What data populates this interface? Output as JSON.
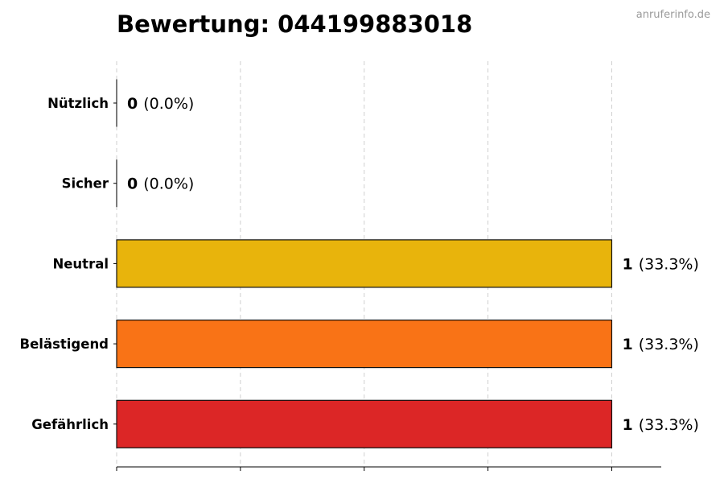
{
  "watermark": "anruferinfo.de",
  "chart_data": {
    "type": "bar",
    "orientation": "horizontal",
    "title": "Bewertung: 044199883018",
    "categories": [
      "Nützlich",
      "Sicher",
      "Neutral",
      "Belästigend",
      "Gefährlich"
    ],
    "values": [
      0,
      0,
      1,
      1,
      1
    ],
    "percent_labels": [
      "(0.0%)",
      "(0.0%)",
      "(33.3%)",
      "(33.3%)",
      "(33.3%)"
    ],
    "colors": [
      "#2e9e44",
      "#1f6fb2",
      "#e8b40c",
      "#f97316",
      "#dc2626"
    ],
    "xlim": [
      0,
      1.1
    ],
    "xticks": [
      0,
      0.25,
      0.5,
      0.75,
      1.0
    ],
    "grid": true,
    "xlabel": "",
    "ylabel": ""
  }
}
